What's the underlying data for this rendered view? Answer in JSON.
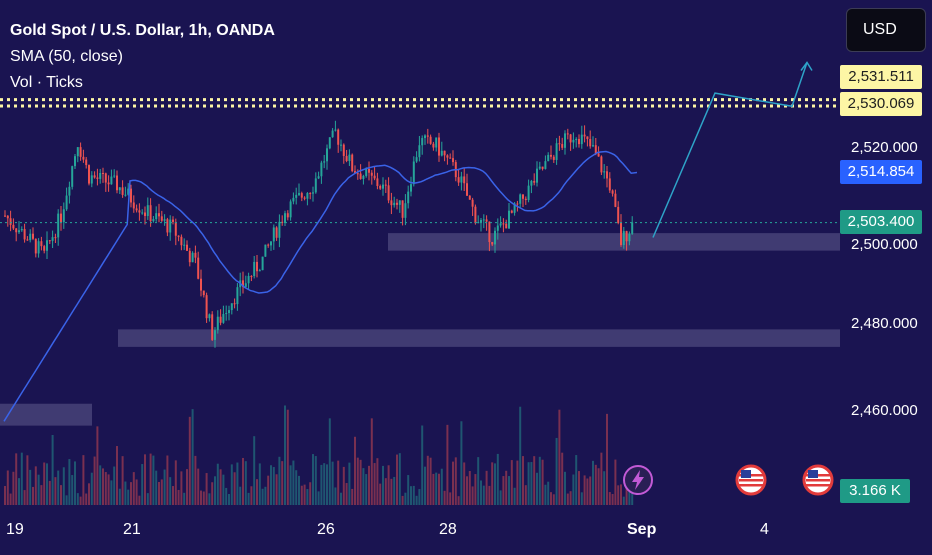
{
  "legend": {
    "title": "Gold Spot / U.S. Dollar, 1h, OANDA",
    "sma": "SMA (50, close)",
    "volume": "Vol · Ticks"
  },
  "currency_label": "USD",
  "price_tags": {
    "line_upper": "2,531.511",
    "line_lower": "2,530.069",
    "sma_value": "2,514.854",
    "last_price": "2,503.400",
    "volume_value": "3.166 K"
  },
  "price_axis": {
    "labels": [
      "2,520.000",
      "2,500.000",
      "2,480.000",
      "2,460.000"
    ]
  },
  "time_axis": {
    "labels": [
      "19",
      "21",
      "26",
      "28",
      "Sep",
      "4"
    ]
  },
  "colors": {
    "background": "#1a1451",
    "up_candle": "#26a69a",
    "down_candle": "#ef5350",
    "sma_line": "#3a63e8",
    "projection": "#2ea3c8",
    "zone": "#6e6a9c",
    "dotted_level": "#fdf6a5"
  },
  "icons": [
    "lightning-icon",
    "us-flag-icon"
  ],
  "chart_data": {
    "type": "candlestick",
    "title": "Gold Spot / U.S. Dollar, 1h, OANDA",
    "ylim": [
      2450,
      2540
    ],
    "x_labels": [
      "19",
      "21",
      "26",
      "28",
      "Sep",
      "4"
    ],
    "levels": [
      2531.511,
      2530.069
    ],
    "last_price": 2503.4,
    "sma_last": 2514.854,
    "zones": [
      {
        "low": 2497,
        "high": 2501
      },
      {
        "low": 2475,
        "high": 2479
      },
      {
        "low": 2457,
        "high": 2462
      }
    ],
    "projection_path": [
      2500,
      2533,
      2530,
      2540
    ],
    "volume_last": "3.166 K"
  }
}
